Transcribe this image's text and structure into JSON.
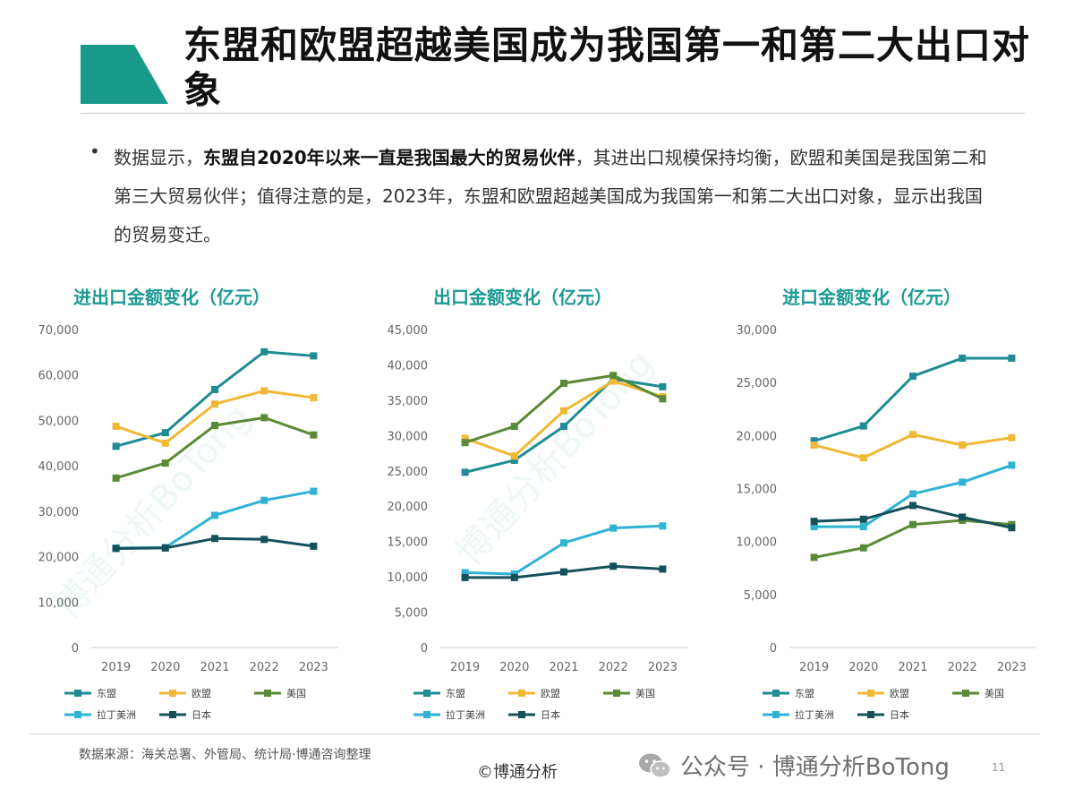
{
  "header": {
    "title": "东盟和欧盟超越美国成为我国第一和第二大出口对象",
    "accent_color": "#1a9a8a"
  },
  "summary": {
    "bullet": "•",
    "part1": "数据显示，",
    "bold": "东盟自2020年以来一直是我国最大的贸易伙伴",
    "part2": "，其进出口规模保持均衡，欧盟和美国是我国第二和第三大贸易伙伴；值得注意的是，2023年，东盟和欧盟超越美国成为我国第一和第二大出口对象，显示出我国的贸易变迁。"
  },
  "chart_data": [
    {
      "type": "line",
      "title": "进出口金额变化（亿元）",
      "x": [
        "2019",
        "2020",
        "2021",
        "2022",
        "2023"
      ],
      "ylim": [
        0,
        70000
      ],
      "yticks": [
        "70,000",
        "60,000",
        "50,000",
        "40,000",
        "30,000",
        "20,000",
        "10,000",
        "0"
      ],
      "grid": false,
      "legend_position": "bottom",
      "series": [
        {
          "name": "东盟",
          "color": "#1e8c93",
          "values": [
            44300,
            47300,
            56800,
            65100,
            64200
          ]
        },
        {
          "name": "欧盟",
          "color": "#efb935",
          "values": [
            48700,
            45000,
            53600,
            56500,
            55000
          ]
        },
        {
          "name": "美国",
          "color": "#5a8a35",
          "values": [
            37300,
            40600,
            48900,
            50600,
            46800
          ]
        },
        {
          "name": "拉丁美洲",
          "color": "#2fb2d4",
          "values": [
            21900,
            22000,
            29100,
            32400,
            34400
          ]
        },
        {
          "name": "日本",
          "color": "#14515a",
          "values": [
            21800,
            21900,
            24000,
            23800,
            22300
          ]
        }
      ]
    },
    {
      "type": "line",
      "title": "出口金额变化（亿元）",
      "x": [
        "2019",
        "2020",
        "2021",
        "2022",
        "2023"
      ],
      "ylim": [
        0,
        45000
      ],
      "yticks": [
        "45,000",
        "40,000",
        "35,000",
        "30,000",
        "25,000",
        "20,000",
        "15,000",
        "10,000",
        "5,000",
        "0"
      ],
      "grid": false,
      "legend_position": "bottom",
      "series": [
        {
          "name": "东盟",
          "color": "#1e8c93",
          "values": [
            24800,
            26500,
            31300,
            38000,
            36900
          ]
        },
        {
          "name": "欧盟",
          "color": "#efb935",
          "values": [
            29600,
            27100,
            33500,
            37700,
            35500
          ]
        },
        {
          "name": "美国",
          "color": "#5a8a35",
          "values": [
            29000,
            31300,
            37400,
            38500,
            35200
          ]
        },
        {
          "name": "拉丁美洲",
          "color": "#2fb2d4",
          "values": [
            10600,
            10400,
            14800,
            16900,
            17200
          ]
        },
        {
          "name": "日本",
          "color": "#14515a",
          "values": [
            9900,
            9900,
            10700,
            11500,
            11100
          ]
        }
      ]
    },
    {
      "type": "line",
      "title": "进口金额变化（亿元）",
      "x": [
        "2019",
        "2020",
        "2021",
        "2022",
        "2023"
      ],
      "ylim": [
        0,
        30000
      ],
      "yticks": [
        "30,000",
        "25,000",
        "20,000",
        "15,000",
        "10,000",
        "5,000",
        "0"
      ],
      "grid": false,
      "legend_position": "bottom",
      "series": [
        {
          "name": "东盟",
          "color": "#1e8c93",
          "values": [
            19500,
            20900,
            25600,
            27300,
            27300
          ]
        },
        {
          "name": "欧盟",
          "color": "#efb935",
          "values": [
            19100,
            17900,
            20100,
            19100,
            19800
          ]
        },
        {
          "name": "美国",
          "color": "#5a8a35",
          "values": [
            8500,
            9400,
            11600,
            12000,
            11600
          ]
        },
        {
          "name": "拉丁美洲",
          "color": "#2fb2d4",
          "values": [
            11400,
            11400,
            14500,
            15600,
            17200
          ]
        },
        {
          "name": "日本",
          "color": "#14515a",
          "values": [
            11900,
            12100,
            13400,
            12300,
            11300
          ]
        }
      ]
    }
  ],
  "footer": {
    "source": "数据来源：海关总署、外管局、统计局·博通咨询整理",
    "copyright": "©博通分析",
    "wechat": "公众号 · 博通分析BoTong",
    "page": "11",
    "watermark": "博通分析BoTong"
  }
}
